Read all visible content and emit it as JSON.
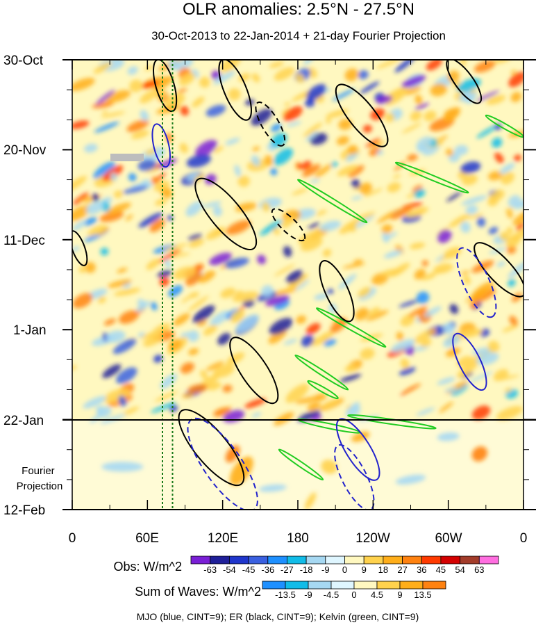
{
  "chart_data": {
    "type": "heatmap",
    "title": "OLR anomalies: 2.5°N - 27.5°N",
    "subtitle": "30-Oct-2013 to 22-Jan-2014 + 21-day Fourier Projection",
    "x_axis": {
      "label": "",
      "tick_labels": [
        "0",
        "60E",
        "120E",
        "180",
        "120W",
        "60W",
        "0"
      ],
      "tick_values_deg_east": [
        0,
        60,
        120,
        180,
        240,
        300,
        360
      ],
      "range": [
        0,
        360
      ]
    },
    "y_axis": {
      "label": "",
      "tick_labels": [
        "30-Oct",
        "20-Nov",
        "11-Dec",
        "1-Jan",
        "22-Jan",
        "12-Feb"
      ],
      "tick_day_offsets": [
        0,
        21,
        42,
        63,
        84,
        105
      ],
      "range_days": [
        0,
        105
      ],
      "projection_start_day": 84,
      "projection_label": "Fourier Projection"
    },
    "reference_lines_deg_east": [
      72,
      80
    ],
    "obs_colorbar": {
      "label": "Obs: W/m^2",
      "levels": [
        -63,
        -54,
        -45,
        -36,
        -27,
        -18,
        -9,
        0,
        9,
        18,
        27,
        36,
        45,
        54,
        63
      ],
      "colors": [
        "#7a1fd6",
        "#1f1f99",
        "#1f36cc",
        "#3a60e0",
        "#1e90ff",
        "#11bce8",
        "#a6d8f2",
        "#dff6ff",
        "#fff8c0",
        "#ffd24d",
        "#ffae1a",
        "#ff8210",
        "#ff3a00",
        "#d40000",
        "#a33c2a",
        "#ff6ee0"
      ]
    },
    "waves_colorbar": {
      "label": "Sum of Waves: W/m^2",
      "levels": [
        "-13.5",
        "-9",
        "-4.5",
        "0",
        "4.5",
        "9",
        "13.5"
      ],
      "colors": [
        "#1e90ff",
        "#11bce8",
        "#a6d8f2",
        "#dff6ff",
        "#fff8c0",
        "#ffd24d",
        "#ffae1a",
        "#ff8210"
      ]
    },
    "legend_note": "MJO (blue, CINT=9); ER (black, CINT=9); Kelvin (green, CINT=9)",
    "series": [
      {
        "name": "MJO",
        "color": "#2222cc",
        "cint": 9
      },
      {
        "name": "ER",
        "color": "#000000",
        "cint": 9
      },
      {
        "name": "Kelvin",
        "color": "#22cc22",
        "cint": 9
      }
    ],
    "kelvin_contours": [
      {
        "lon": [
          180,
          235
        ],
        "day": [
          28,
          38
        ]
      },
      {
        "lon": [
          195,
          250
        ],
        "day": [
          58,
          67
        ]
      },
      {
        "lon": [
          330,
          360
        ],
        "day": [
          13,
          18
        ]
      },
      {
        "lon": [
          258,
          316
        ],
        "day": [
          24,
          31
        ]
      },
      {
        "lon": [
          165,
          200
        ],
        "day": [
          91,
          98
        ]
      },
      {
        "lon": [
          180,
          230
        ],
        "day": [
          84,
          87
        ]
      },
      {
        "lon": [
          220,
          290
        ],
        "day": [
          83,
          86
        ]
      },
      {
        "lon": [
          178,
          220
        ],
        "day": [
          69,
          77
        ]
      },
      {
        "lon": [
          188,
          212
        ],
        "day": [
          75,
          79
        ]
      }
    ],
    "er_contours": [
      {
        "lon": [
          68,
          80
        ],
        "day": [
          0,
          12
        ],
        "dashed": false
      },
      {
        "lon": [
          100,
          145
        ],
        "day": [
          28,
          44
        ],
        "dashed": false
      },
      {
        "lon": [
          200,
          222
        ],
        "day": [
          47,
          61
        ],
        "dashed": false
      },
      {
        "lon": [
          148,
          168
        ],
        "day": [
          10,
          20
        ],
        "dashed": true
      },
      {
        "lon": [
          120,
          140
        ],
        "day": [
          0,
          14
        ],
        "dashed": false
      },
      {
        "lon": [
          300,
          325
        ],
        "day": [
          0,
          10
        ],
        "dashed": false
      },
      {
        "lon": [
          322,
          360
        ],
        "day": [
          43,
          55
        ],
        "dashed": false
      },
      {
        "lon": [
          87,
          135
        ],
        "day": [
          82,
          99
        ],
        "dashed": false
      },
      {
        "lon": [
          128,
          162
        ],
        "day": [
          65,
          80
        ],
        "dashed": false
      },
      {
        "lon": [
          0,
          10
        ],
        "day": [
          40,
          48
        ],
        "dashed": false
      },
      {
        "lon": [
          212,
          250
        ],
        "day": [
          6,
          20
        ],
        "dashed": false
      },
      {
        "lon": [
          160,
          185
        ],
        "day": [
          35,
          42
        ],
        "dashed": true
      }
    ],
    "mjo_contours": [
      {
        "lon": [
          67,
          75
        ],
        "day": [
          15,
          25
        ],
        "dashed": false
      },
      {
        "lon": [
          95,
          145
        ],
        "day": [
          84,
          105
        ],
        "dashed": true
      },
      {
        "lon": [
          213,
          243
        ],
        "day": [
          84,
          98
        ],
        "dashed": false
      },
      {
        "lon": [
          212,
          238
        ],
        "day": [
          90,
          105
        ],
        "dashed": true
      },
      {
        "lon": [
          310,
          335
        ],
        "day": [
          44,
          60
        ],
        "dashed": true
      },
      {
        "lon": [
          306,
          328
        ],
        "day": [
          64,
          77
        ],
        "dashed": false
      }
    ]
  },
  "footer": {
    "note": "MJO (blue, CINT=9); ER (black, CINT=9); Kelvin (green, CINT=9)"
  }
}
